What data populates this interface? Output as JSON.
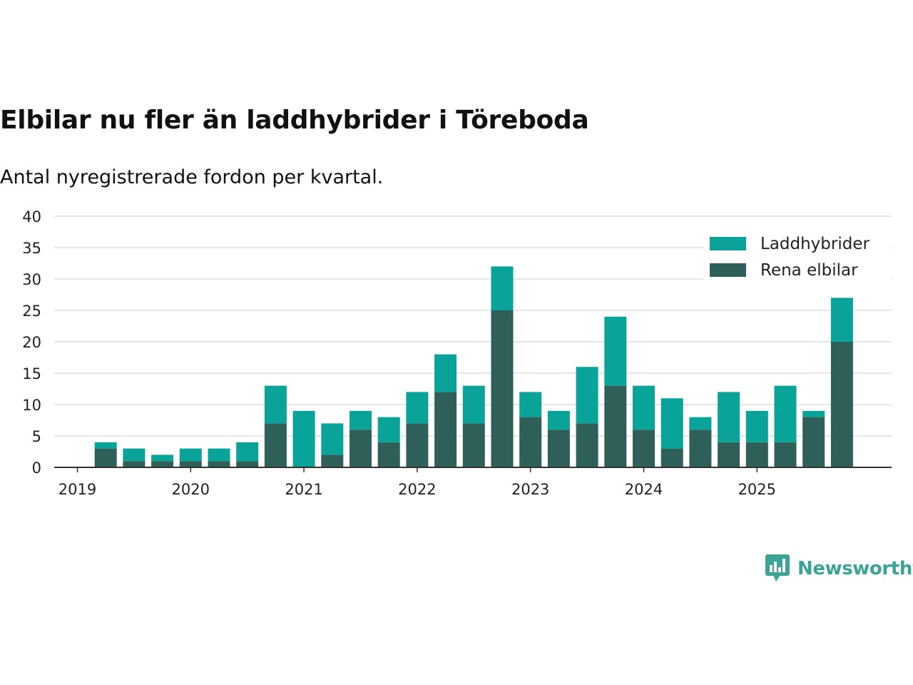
{
  "title": "Elbilar nu fler än laddhybrider i Töreboda",
  "subtitle": "Antal nyregistrerade fordon per kvartal.",
  "brand": "Newsworthy",
  "colors": {
    "laddhybrider": "#0aa39a",
    "rena_elbilar": "#2f5f59",
    "grid": "#dddddd",
    "axis": "#333333",
    "brand": "#3aa597"
  },
  "chart_data": {
    "type": "bar",
    "stacked": true,
    "title": "Elbilar nu fler än laddhybrider i Töreboda",
    "subtitle": "Antal nyregistrerade fordon per kvartal.",
    "xlabel": "",
    "ylabel": "",
    "ylim": [
      0,
      40
    ],
    "yticks": [
      0,
      5,
      10,
      15,
      20,
      25,
      30,
      35,
      40
    ],
    "xticks": [
      "2019",
      "2020",
      "2021",
      "2022",
      "2023",
      "2024",
      "2025"
    ],
    "categories": [
      "2019 Q1",
      "2019 Q2",
      "2019 Q3",
      "2019 Q4",
      "2020 Q1",
      "2020 Q2",
      "2020 Q3",
      "2020 Q4",
      "2021 Q1",
      "2021 Q2",
      "2021 Q3",
      "2021 Q4",
      "2022 Q1",
      "2022 Q2",
      "2022 Q3",
      "2022 Q4",
      "2023 Q1",
      "2023 Q2",
      "2023 Q3",
      "2023 Q4",
      "2024 Q1",
      "2024 Q2",
      "2024 Q3",
      "2024 Q4",
      "2025 Q1",
      "2025 Q2",
      "2025 Q3",
      "2025 Q4"
    ],
    "series": [
      {
        "name": "Rena elbilar",
        "values": [
          0,
          3,
          1,
          1,
          1,
          1,
          1,
          7,
          0,
          2,
          6,
          4,
          7,
          12,
          7,
          25,
          8,
          6,
          7,
          13,
          6,
          3,
          6,
          4,
          4,
          4,
          8,
          20
        ]
      },
      {
        "name": "Laddhybrider",
        "values": [
          0,
          1,
          2,
          1,
          2,
          2,
          3,
          6,
          9,
          5,
          3,
          4,
          5,
          6,
          6,
          7,
          4,
          3,
          9,
          11,
          7,
          8,
          2,
          8,
          5,
          9,
          1,
          7
        ]
      }
    ],
    "legend": [
      "Laddhybrider",
      "Rena elbilar"
    ],
    "legend_position": "top-right",
    "grid": true
  }
}
